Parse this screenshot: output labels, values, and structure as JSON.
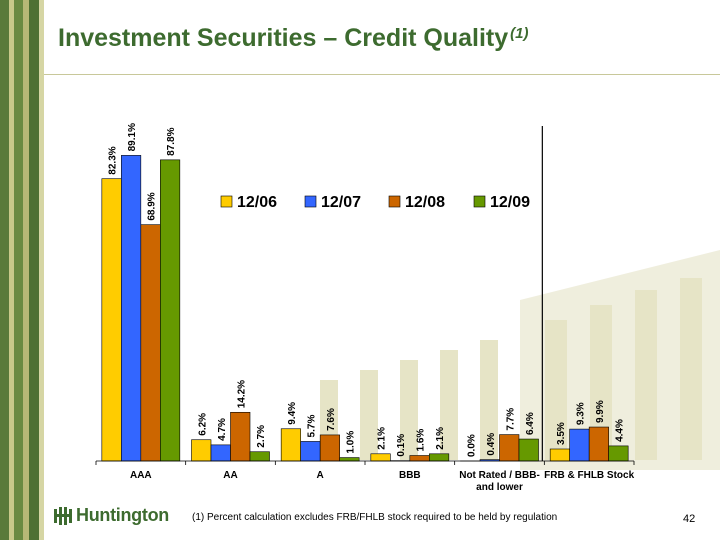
{
  "slide": {
    "title": "Investment Securities – Credit Quality",
    "title_note": "(1)",
    "footnote": "(1)  Percent calculation excludes FRB/FHLB stock required to be held by regulation",
    "page_number": "42",
    "logo_text": "Huntington"
  },
  "colors": {
    "brand_green": "#3d6b2f",
    "series": [
      "#ffcc00",
      "#3366ff",
      "#cc6600",
      "#669900"
    ]
  },
  "chart_data": {
    "type": "bar",
    "title": "",
    "xlabel": "",
    "ylabel": "",
    "ylim": [
      0,
      100
    ],
    "grid": false,
    "legend_position": "upper-center",
    "categories": [
      "AAA",
      "AA",
      "A",
      "BBB",
      "Not Rated / BBB- and lower",
      "FRB & FHLB Stock"
    ],
    "series": [
      {
        "name": "12/06",
        "values": [
          82.3,
          6.2,
          9.4,
          2.1,
          0.0,
          3.5
        ],
        "labels": [
          "82.3%",
          "6.2%",
          "9.4%",
          "2.1%",
          "0.0%",
          "3.5%"
        ]
      },
      {
        "name": "12/07",
        "values": [
          89.1,
          4.7,
          5.7,
          0.1,
          0.4,
          9.3
        ],
        "labels": [
          "89.1%",
          "4.7%",
          "5.7%",
          "0.1%",
          "0.4%",
          "9.3%"
        ]
      },
      {
        "name": "12/08",
        "values": [
          68.9,
          14.2,
          7.6,
          1.6,
          7.7,
          9.9
        ],
        "labels": [
          "68.9%",
          "14.2%",
          "7.6%",
          "1.6%",
          "7.7%",
          "9.9%"
        ]
      },
      {
        "name": "12/09",
        "values": [
          87.8,
          2.7,
          1.0,
          2.1,
          6.4,
          4.4
        ],
        "labels": [
          "87.8%",
          "2.7%",
          "1.0%",
          "2.1%",
          "6.4%",
          "4.4%"
        ]
      }
    ],
    "category_display": [
      [
        "AAA"
      ],
      [
        "AA"
      ],
      [
        "A"
      ],
      [
        "BBB"
      ],
      [
        "Not Rated / BBB-",
        "and lower"
      ],
      [
        "FRB & FHLB Stock"
      ]
    ]
  }
}
